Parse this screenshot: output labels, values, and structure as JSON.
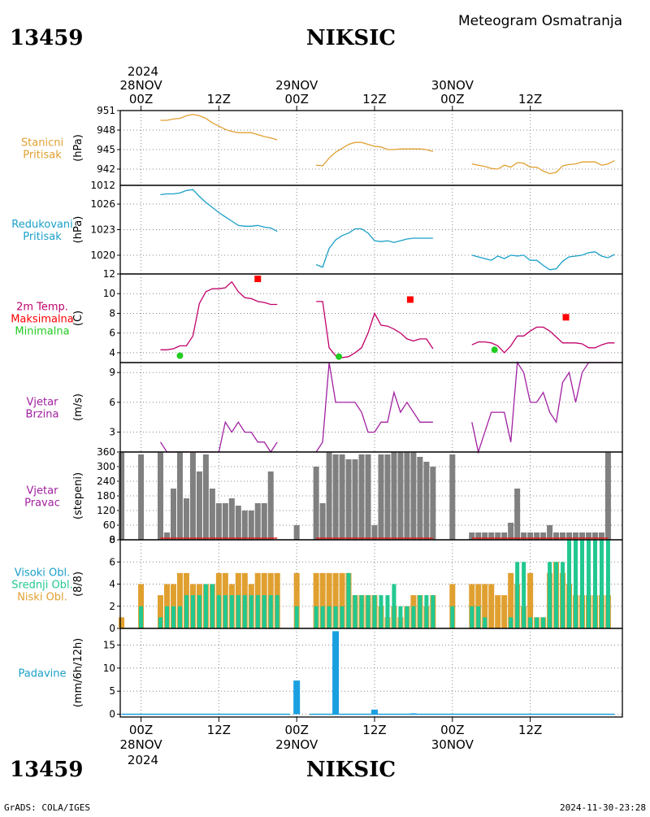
{
  "header": {
    "station_id": "13459",
    "station_name": "NIKSIC",
    "chart_title": "Meteogram Osmatranja"
  },
  "time_axis": {
    "top_year": "2024",
    "top_labels": [
      {
        "t": 0,
        "day": "28NOV",
        "hour": "00Z"
      },
      {
        "t": 12,
        "day": "",
        "hour": "12Z"
      },
      {
        "t": 24,
        "day": "29NOV",
        "hour": "00Z"
      },
      {
        "t": 36,
        "day": "",
        "hour": "12Z"
      },
      {
        "t": 48,
        "day": "30NOV",
        "hour": "00Z"
      },
      {
        "t": 60,
        "day": "",
        "hour": "12Z"
      }
    ],
    "bottom_year": "2024",
    "bottom_labels": [
      {
        "t": 0,
        "hour": "00Z",
        "day": "28NOV"
      },
      {
        "t": 12,
        "hour": "12Z",
        "day": ""
      },
      {
        "t": 24,
        "hour": "00Z",
        "day": "29NOV"
      },
      {
        "t": 36,
        "hour": "12Z",
        "day": ""
      },
      {
        "t": 48,
        "hour": "00Z",
        "day": "30NOV"
      },
      {
        "t": 60,
        "hour": "12Z",
        "day": ""
      }
    ]
  },
  "footer": {
    "station_id": "13459",
    "station_name": "NIKSIC",
    "credit": "GrADS: COLA/IGES",
    "timestamp": "2024-11-30-23:28"
  },
  "colors": {
    "station_pressure": "#e0a030",
    "reduced_pressure": "#1aa0c8",
    "temp": "#c0006a",
    "tmax": "#ff0000",
    "tmin": "#22cc22",
    "wind": "#a020a0",
    "dir_bar": "#808080",
    "dir_base": "#e02020",
    "cloud_high": "#1aa0c8",
    "cloud_mid": "#22c890",
    "cloud_low": "#e0a030",
    "precip": "#1aa0e0",
    "precip_label": "#1aa0c8"
  },
  "chart_data": [
    {
      "type": "line",
      "label_lines": [
        "Stanicni",
        "Pritisak"
      ],
      "unit": "(hPa)",
      "ylim": [
        939.5,
        951
      ],
      "yticks": [
        942,
        945,
        948,
        951
      ],
      "series": [
        {
          "x": [
            3,
            4,
            5,
            6,
            7,
            8,
            9,
            10,
            11,
            12,
            13,
            14,
            15,
            16,
            17,
            18,
            19,
            20,
            21
          ],
          "y": [
            949.5,
            949.5,
            949.7,
            949.8,
            950.2,
            950.4,
            950.2,
            949.8,
            949.1,
            948.6,
            948.1,
            947.8,
            947.6,
            947.6,
            947.6,
            947.3,
            947.0,
            946.8,
            946.5
          ]
        },
        {
          "x": [
            27,
            28,
            29,
            30,
            31,
            32,
            33,
            34,
            35,
            36,
            37,
            38,
            39,
            40,
            41,
            42,
            43,
            44,
            45
          ],
          "y": [
            942.6,
            942.5,
            943.7,
            944.6,
            945.2,
            945.8,
            946.1,
            946.1,
            945.8,
            945.5,
            945.4,
            945.0,
            945.0,
            945.1,
            945.1,
            945.1,
            945.1,
            945.0,
            944.7
          ]
        },
        {
          "x": [
            51,
            52,
            53,
            54,
            55,
            56,
            57,
            58,
            59,
            60,
            61,
            62,
            63,
            64,
            65,
            66,
            67,
            68,
            69,
            70,
            71,
            72,
            73
          ],
          "y": [
            942.8,
            942.6,
            942.4,
            942.1,
            942.0,
            942.6,
            942.3,
            943.0,
            942.9,
            942.3,
            942.3,
            941.7,
            941.3,
            941.5,
            942.5,
            942.7,
            942.8,
            943.1,
            943.1,
            943.1,
            942.6,
            942.8,
            943.3
          ]
        }
      ]
    },
    {
      "type": "line",
      "label_lines": [
        "Redukovani",
        "Pritisak"
      ],
      "unit": "(hPa)",
      "ylim": [
        1017.8,
        1028.2
      ],
      "yticks": [
        1020,
        1023,
        1026
      ],
      "series": [
        {
          "x": [
            3,
            4,
            5,
            6,
            7,
            8,
            9,
            10,
            11,
            12,
            13,
            14,
            15,
            16,
            17,
            18,
            19,
            20,
            21
          ],
          "y": [
            1027.1,
            1027.2,
            1027.2,
            1027.3,
            1027.6,
            1027.7,
            1026.9,
            1026.2,
            1025.6,
            1025.0,
            1024.5,
            1024.0,
            1023.5,
            1023.4,
            1023.4,
            1023.5,
            1023.3,
            1023.2,
            1022.8
          ]
        },
        {
          "x": [
            27,
            28,
            29,
            30,
            31,
            32,
            33,
            34,
            35,
            36,
            37,
            38,
            39,
            40,
            41,
            42,
            43,
            44,
            45
          ],
          "y": [
            1018.9,
            1018.6,
            1020.8,
            1021.8,
            1022.3,
            1022.6,
            1023.1,
            1023.1,
            1022.6,
            1021.7,
            1021.6,
            1021.7,
            1021.5,
            1021.7,
            1021.9,
            1022.0,
            1022.0,
            1022.0,
            1022.0
          ]
        },
        {
          "x": [
            51,
            52,
            53,
            54,
            55,
            56,
            57,
            58,
            59,
            60,
            61,
            62,
            63,
            64,
            65,
            66,
            67,
            68,
            69,
            70,
            71,
            72,
            73
          ],
          "y": [
            1020.0,
            1019.8,
            1019.6,
            1019.4,
            1019.9,
            1019.6,
            1020.0,
            1019.9,
            1020.0,
            1019.4,
            1019.4,
            1018.8,
            1018.3,
            1018.4,
            1019.3,
            1019.8,
            1019.9,
            1020.0,
            1020.3,
            1020.4,
            1019.9,
            1019.7,
            1020.1
          ]
        }
      ],
      "clipped_top_label": "1012"
    },
    {
      "type": "line",
      "label_lines": [
        "2m Temp.",
        "Maksimalna",
        "Minimalna"
      ],
      "unit": "(C)",
      "ylim": [
        3.0,
        12
      ],
      "yticks": [
        4,
        6,
        8,
        10,
        12
      ],
      "series": [
        {
          "x": [
            3,
            4,
            5,
            6,
            7,
            8,
            9,
            10,
            11,
            12,
            13,
            14,
            15,
            16,
            17,
            18,
            19,
            20,
            21
          ],
          "y": [
            4.3,
            4.3,
            4.4,
            4.7,
            4.7,
            5.7,
            9.0,
            10.2,
            10.5,
            10.5,
            10.6,
            11.2,
            10.2,
            9.6,
            9.5,
            9.2,
            9.1,
            8.9,
            8.9
          ]
        },
        {
          "x": [
            27,
            28,
            29,
            30,
            31,
            32,
            33,
            34,
            35,
            36,
            37,
            38,
            39,
            40,
            41,
            42,
            43,
            44,
            45
          ],
          "y": [
            9.2,
            9.2,
            4.5,
            3.7,
            3.5,
            3.6,
            4.0,
            4.5,
            6.0,
            8.0,
            6.8,
            6.7,
            6.4,
            6.0,
            5.4,
            5.2,
            5.4,
            5.4,
            4.4
          ]
        },
        {
          "x": [
            51,
            52,
            53,
            54,
            55,
            56,
            57,
            58,
            59,
            60,
            61,
            62,
            63,
            64,
            65,
            66,
            67,
            68,
            69,
            70,
            71,
            72,
            73
          ],
          "y": [
            4.8,
            5.1,
            5.1,
            5.0,
            4.7,
            4.0,
            4.7,
            5.7,
            5.7,
            6.2,
            6.6,
            6.6,
            6.2,
            5.6,
            5.0,
            5.0,
            5.0,
            4.9,
            4.5,
            4.5,
            4.8,
            5.0,
            5.0
          ]
        }
      ],
      "tmax": {
        "x": [
          18,
          41.5,
          65.5
        ],
        "y": [
          11.5,
          9.4,
          7.6
        ]
      },
      "tmin": {
        "x": [
          6,
          30.5,
          54.5
        ],
        "y": [
          3.7,
          3.6,
          4.3
        ]
      }
    },
    {
      "type": "line",
      "label_lines": [
        "Vjetar",
        "Brzina"
      ],
      "unit": "(m/s)",
      "ylim": [
        1.0,
        10.0
      ],
      "yticks": [
        3,
        6,
        9
      ],
      "series": [
        {
          "x": [
            3,
            4,
            5,
            6,
            7,
            8,
            9,
            10,
            11,
            12,
            13,
            14,
            15,
            16,
            17,
            18,
            19,
            20,
            21
          ],
          "y": [
            2.0,
            1.0,
            1.0,
            1.0,
            1.0,
            1.0,
            1.0,
            1.0,
            1.0,
            1.0,
            4.0,
            3.0,
            4.0,
            3.0,
            3.0,
            2.0,
            2.0,
            1.0,
            2.0
          ]
        },
        {
          "x": [
            27,
            28,
            29,
            30,
            31,
            32,
            33,
            34,
            35,
            36,
            37,
            38,
            39,
            40,
            41,
            42,
            43,
            44,
            45
          ],
          "y": [
            1.0,
            2.0,
            10.0,
            6.0,
            6.0,
            6.0,
            6.0,
            5.0,
            3.0,
            3.0,
            4.0,
            4.0,
            7.0,
            5.0,
            6.0,
            5.0,
            4.0,
            4.0,
            4.0
          ]
        },
        {
          "x": [
            51,
            52,
            53,
            54,
            55,
            56,
            57,
            58,
            59,
            60,
            61,
            62,
            63,
            64,
            65,
            66,
            67,
            68,
            69,
            70,
            71,
            72,
            73
          ],
          "y": [
            4.0,
            1.0,
            3.0,
            5.0,
            5.0,
            5.0,
            2.0,
            10.0,
            9.0,
            6.0,
            6.0,
            7.0,
            5.0,
            4.0,
            8.0,
            9.0,
            6.0,
            9.0,
            10.0,
            10.0,
            10.0,
            10.0,
            10.0
          ]
        }
      ]
    },
    {
      "type": "bar",
      "label_lines": [
        "Vjetar",
        "Pravac"
      ],
      "unit": "(stepeni)",
      "ylim": [
        0,
        360
      ],
      "yticks": [
        0,
        60,
        120,
        180,
        240,
        300,
        360
      ],
      "x": [
        -3,
        0,
        3,
        4,
        5,
        6,
        7,
        8,
        9,
        10,
        11,
        12,
        13,
        14,
        15,
        16,
        17,
        18,
        19,
        20,
        21,
        24,
        27,
        28,
        29,
        30,
        31,
        32,
        33,
        34,
        35,
        36,
        37,
        38,
        39,
        40,
        41,
        42,
        43,
        44,
        45,
        48,
        51,
        52,
        53,
        54,
        55,
        56,
        57,
        58,
        59,
        60,
        61,
        62,
        63,
        64,
        65,
        66,
        67,
        68,
        69,
        70,
        71,
        72
      ],
      "values": [
        360,
        350,
        360,
        30,
        210,
        360,
        170,
        360,
        280,
        350,
        210,
        150,
        150,
        170,
        140,
        120,
        120,
        150,
        150,
        280,
        0,
        60,
        300,
        150,
        360,
        350,
        350,
        330,
        330,
        350,
        350,
        60,
        350,
        350,
        360,
        360,
        360,
        360,
        340,
        320,
        300,
        350,
        30,
        30,
        30,
        30,
        30,
        30,
        70,
        210,
        30,
        30,
        30,
        30,
        60,
        30,
        30,
        30,
        30,
        30,
        30,
        30,
        30,
        360
      ],
      "base_segments": [
        [
          3,
          21
        ],
        [
          27,
          45
        ],
        [
          51,
          72
        ]
      ]
    },
    {
      "type": "bar",
      "label_lines": [
        "Visoki Obl.",
        "Srednji Obl.",
        "Niski Obl."
      ],
      "unit": "(8/8)",
      "ylim": [
        0,
        8
      ],
      "yticks": [
        0,
        2,
        4,
        6,
        8
      ],
      "x": [
        -3,
        0,
        3,
        4,
        5,
        6,
        7,
        8,
        9,
        10,
        11,
        12,
        13,
        14,
        15,
        16,
        17,
        18,
        19,
        20,
        21,
        24,
        27,
        28,
        29,
        30,
        31,
        32,
        33,
        34,
        35,
        36,
        37,
        38,
        39,
        40,
        41,
        42,
        43,
        44,
        45,
        48,
        51,
        52,
        53,
        54,
        55,
        56,
        57,
        58,
        59,
        60,
        61,
        62,
        63,
        64,
        65,
        66,
        67,
        68,
        69,
        70,
        71,
        72
      ],
      "series": [
        {
          "name": "Visoki Obl.",
          "values": [
            0,
            0,
            0,
            0,
            0,
            0,
            0,
            0,
            0,
            0,
            0,
            0,
            0,
            0,
            0,
            0,
            0,
            0,
            0,
            0,
            0,
            0,
            0,
            0,
            0,
            0,
            0,
            0,
            0,
            0,
            0,
            0,
            0,
            0,
            0,
            0,
            0,
            0,
            0,
            0,
            0,
            0,
            0,
            0,
            0,
            0,
            0,
            0,
            0,
            0,
            0,
            0,
            0,
            0,
            0,
            0,
            0,
            0,
            0,
            0,
            0,
            0,
            0,
            0
          ]
        },
        {
          "name": "Srednji Obl.",
          "values": [
            0,
            2,
            1,
            2,
            2,
            2,
            3,
            3,
            3,
            4,
            4,
            3,
            3,
            3,
            3,
            3,
            3,
            3,
            3,
            3,
            3,
            2,
            2,
            2,
            2,
            2,
            2,
            5,
            3,
            3,
            3,
            3,
            3,
            3,
            4,
            2,
            2,
            2,
            3,
            3,
            3,
            2,
            2,
            2,
            1,
            0,
            0,
            0,
            1,
            6,
            6,
            1,
            1,
            1,
            6,
            6,
            6,
            8,
            8,
            8,
            8,
            8,
            8,
            8
          ]
        },
        {
          "name": "Niski Obl.",
          "values": [
            1,
            4,
            3,
            4,
            4,
            5,
            5,
            4,
            4,
            4,
            4,
            5,
            5,
            4,
            5,
            5,
            4,
            5,
            5,
            5,
            5,
            5,
            5,
            5,
            5,
            5,
            5,
            5,
            3,
            3,
            3,
            3,
            2,
            1,
            2,
            1,
            2,
            3,
            3,
            2,
            3,
            4,
            4,
            4,
            4,
            4,
            3,
            3,
            5,
            4,
            2,
            5,
            1,
            1,
            5,
            6,
            5,
            4,
            3,
            3,
            3,
            3,
            3,
            3
          ]
        }
      ]
    },
    {
      "type": "bar",
      "label_lines": [
        "Padavine"
      ],
      "unit": "(mm/6h/12h)",
      "ylim": [
        -0.6,
        18.6
      ],
      "yticks": [
        0,
        5,
        10,
        15
      ],
      "x": [
        24,
        30,
        36,
        42
      ],
      "values": [
        7.3,
        18.0,
        1.0,
        0.2
      ],
      "baseline_segments": [
        [
          -3,
          23
        ],
        [
          26,
          73
        ]
      ]
    }
  ]
}
